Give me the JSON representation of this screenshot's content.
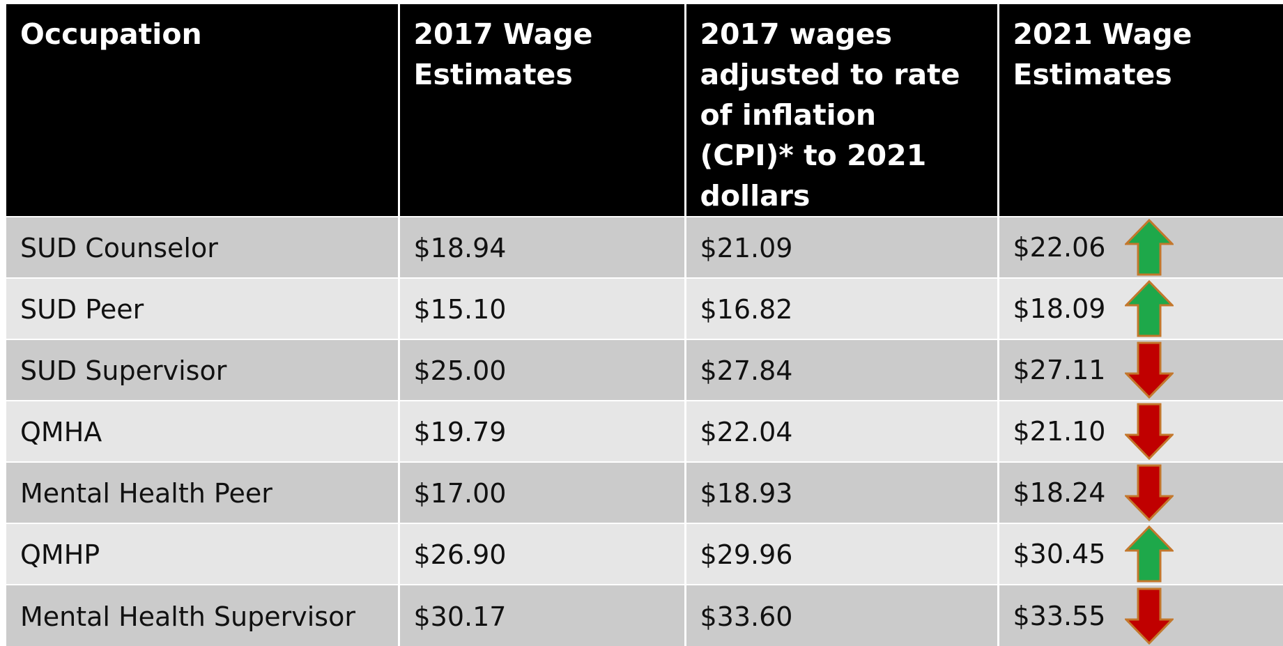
{
  "table": {
    "header": [
      "Occupation",
      "2017 Wage Estimates",
      "2017 wages adjusted to rate of inflation (CPI)* to 2021 dollars",
      "2021 Wage Estimates"
    ],
    "rows": [
      [
        "SUD Counselor",
        "$18.94",
        "$21.09",
        "$22.06"
      ],
      [
        "SUD Peer",
        "$15.10",
        "$16.82",
        "$18.09"
      ],
      [
        "SUD Supervisor",
        "$25.00",
        "$27.84",
        "$27.11"
      ],
      [
        "QMHA",
        "$19.79",
        "$22.04",
        "$21.10"
      ],
      [
        "Mental Health Peer",
        "$17.00",
        "$18.93",
        "$18.24"
      ],
      [
        "QMHP",
        "$26.90",
        "$29.96",
        "$30.45"
      ],
      [
        "Mental Health Supervisor",
        "$30.17",
        "$33.60",
        "$33.55"
      ]
    ]
  }
}
